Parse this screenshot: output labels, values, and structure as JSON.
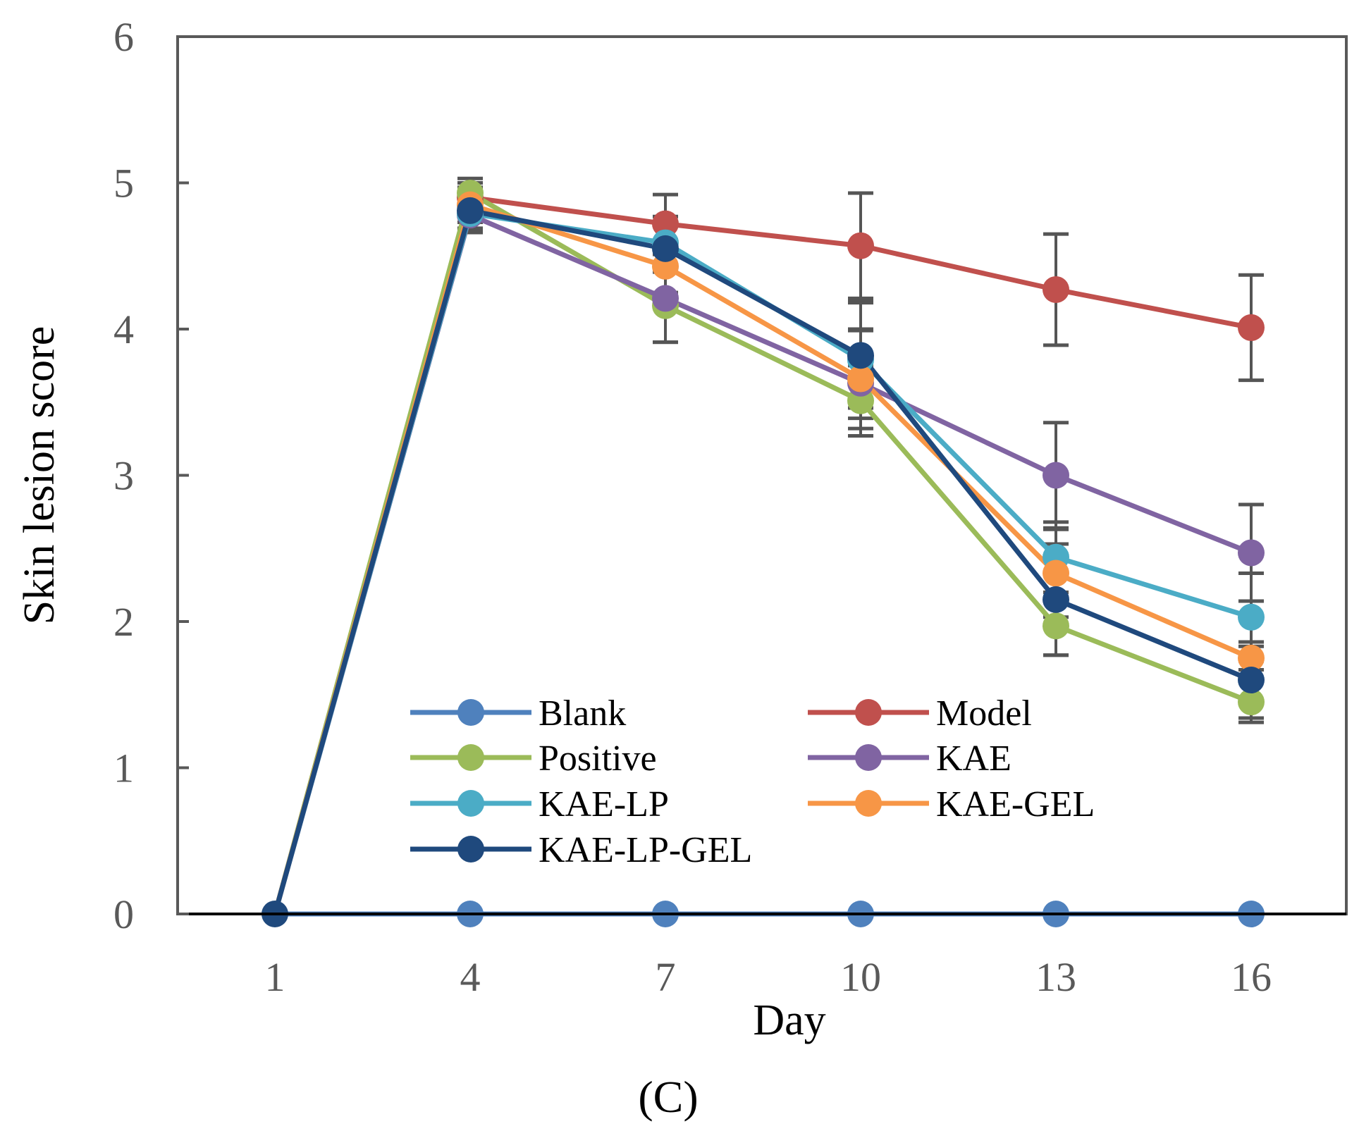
{
  "chart_data": {
    "type": "line",
    "title": "",
    "xlabel": "Day",
    "ylabel": "Skin lesion score",
    "panel_label": "(C)",
    "x": [
      1,
      4,
      7,
      10,
      13,
      16
    ],
    "x_tick_labels": [
      "1",
      "4",
      "7",
      "10",
      "13",
      "16"
    ],
    "ylim": [
      0,
      6
    ],
    "y_ticks": [
      0,
      1,
      2,
      3,
      4,
      5,
      6
    ],
    "y_tick_labels": [
      "0",
      "1",
      "2",
      "3",
      "4",
      "5",
      "6"
    ],
    "grid": false,
    "legend_position": "bottom-center inside plot",
    "series": [
      {
        "name": "Blank",
        "color": "#4f81bd",
        "values": [
          0,
          0,
          0,
          0,
          0,
          0
        ],
        "errors": [
          0,
          0,
          0,
          0,
          0,
          0
        ]
      },
      {
        "name": "Model",
        "color": "#c0504d",
        "values": [
          0,
          4.9,
          4.72,
          4.57,
          4.27,
          4.01
        ],
        "errors": [
          0,
          0.1,
          0.2,
          0.36,
          0.38,
          0.36
        ]
      },
      {
        "name": "Positive",
        "color": "#9bbb59",
        "values": [
          0,
          4.93,
          4.16,
          3.51,
          1.97,
          1.45
        ],
        "errors": [
          0,
          0.1,
          0.25,
          0.24,
          0.2,
          0.14
        ]
      },
      {
        "name": "KAE",
        "color": "#8064a2",
        "values": [
          0,
          4.78,
          4.21,
          3.63,
          3.0,
          2.47
        ],
        "errors": [
          0,
          0.12,
          0.3,
          0.36,
          0.36,
          0.33
        ]
      },
      {
        "name": "KAE-LP",
        "color": "#4bacc6",
        "values": [
          0,
          4.79,
          4.59,
          3.79,
          2.44,
          2.03
        ],
        "errors": [
          0,
          0.12,
          0.18,
          0.4,
          0.24,
          0.3
        ]
      },
      {
        "name": "KAE-GEL",
        "color": "#f79646",
        "values": [
          0,
          4.85,
          4.43,
          3.66,
          2.33,
          1.75
        ],
        "errors": [
          0,
          0.12,
          0.18,
          0.34,
          0.3,
          0.08
        ]
      },
      {
        "name": "KAE-LP-GEL",
        "color": "#1f497d",
        "values": [
          0,
          4.81,
          4.55,
          3.82,
          2.15,
          1.6
        ],
        "errors": [
          0,
          0.12,
          0.16,
          0.36,
          0.38,
          0.26
        ]
      }
    ]
  }
}
